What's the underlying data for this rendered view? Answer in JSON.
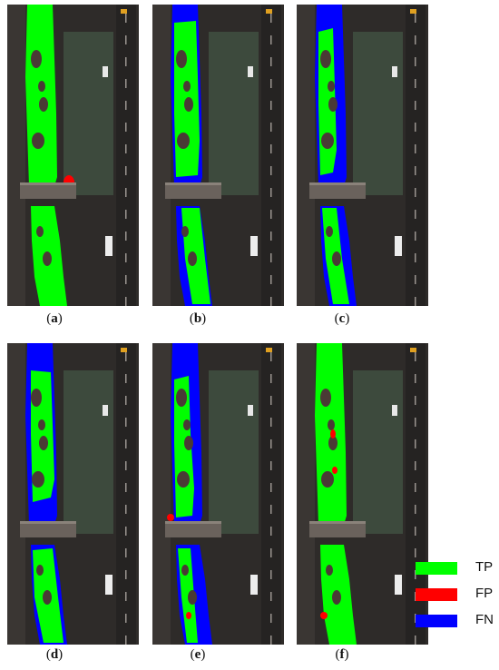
{
  "panels": [
    {
      "label": "a",
      "variant": "gt"
    },
    {
      "label": "b",
      "variant": "fn-left"
    },
    {
      "label": "c",
      "variant": "fn-heavy"
    },
    {
      "label": "d",
      "variant": "fn-mixed"
    },
    {
      "label": "e",
      "variant": "fn-fp"
    },
    {
      "label": "f",
      "variant": "tp-fp"
    }
  ],
  "legend": [
    {
      "key": "TP",
      "color": "#00ff00"
    },
    {
      "key": "FP",
      "color": "#ff0000"
    },
    {
      "key": "FN",
      "color": "#0000ff"
    }
  ],
  "colors": {
    "tp": "#00ff00",
    "fp": "#ff0000",
    "fn": "#0000ff",
    "road": "#2e2b29",
    "trees": "#3d4a3d",
    "bridge": "#6a625c"
  }
}
